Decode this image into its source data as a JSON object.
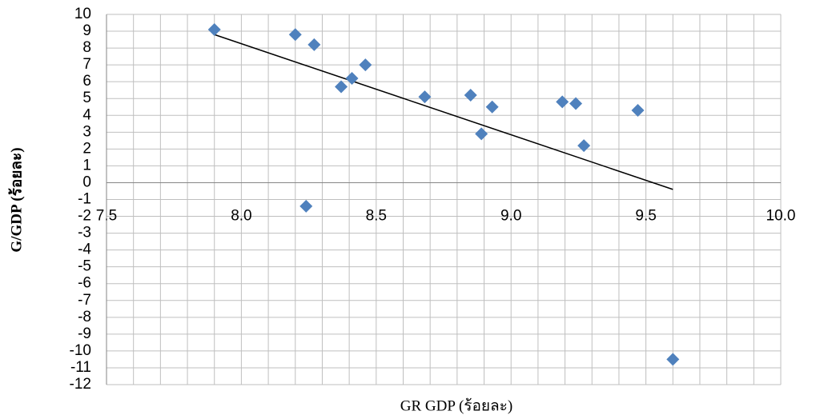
{
  "chart_data": {
    "type": "scatter",
    "x_label": "GR  GDP (ร้อยละ)",
    "y_label": "G/GDP (ร้อยละ)",
    "x": [
      7.9,
      8.2,
      8.27,
      8.37,
      8.41,
      8.46,
      8.68,
      8.85,
      8.93,
      8.89,
      9.19,
      9.24,
      9.27,
      9.47,
      8.24,
      9.6
    ],
    "values": [
      9.1,
      8.8,
      8.2,
      5.7,
      6.2,
      7.0,
      5.1,
      5.2,
      4.5,
      2.9,
      4.8,
      4.7,
      2.2,
      4.3,
      -1.4,
      -10.5
    ],
    "color": "#4f81bd",
    "trendline": {
      "x": [
        7.9,
        9.6
      ],
      "y": [
        8.8,
        -0.4
      ],
      "color": "#000000"
    },
    "xlim": [
      7.5,
      10.0
    ],
    "ylim": [
      -12,
      10
    ],
    "xticks": [
      7.5,
      {
        "value": 8.0,
        "label": "8.0"
      },
      8.5,
      {
        "value": 9.0,
        "label": "9.0"
      },
      9.5,
      {
        "value": 10.0,
        "label": "10.0"
      }
    ],
    "yticks": [
      -12,
      -11,
      -10,
      -9,
      -8,
      -7,
      -6,
      -5,
      -4,
      -3,
      -2,
      -1,
      0,
      1,
      2,
      3,
      4,
      5,
      6,
      7,
      8,
      9,
      10
    ],
    "x_minor_divisions": 5,
    "grid": true
  }
}
